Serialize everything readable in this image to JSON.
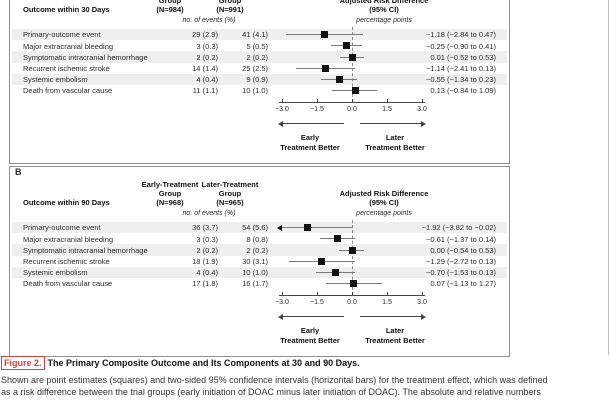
{
  "page": {
    "background": "#ffffff"
  },
  "colors": {
    "row_stripe": "#efefef",
    "panel_border": "#8f8f8f",
    "axis": "#444444",
    "ci_bar": "#7a7a7a",
    "marker": "#111111",
    "zero_line": "#8a8a8a",
    "caption_red": "#d9413d",
    "text": "#2a2a2a",
    "page_rule": "#bdbdbd"
  },
  "figure_caption": {
    "label": "Figure 2.",
    "title": "The Primary Composite Outcome and Its Components at 30 and 90 Days.",
    "body_lines": [
      "Shown are point estimates (squares) and two-sided 95% confidence intervals (horizontal bars) for the treatment effect, which was defined",
      "as a risk difference between the trial groups (early initiation of DOAC minus later initiation of DOAC). The absolute and relative numbers"
    ]
  },
  "chart_data": [
    {
      "type": "scatter",
      "subtype": "forest-plot",
      "panel_label": "",
      "outcome_header": "Outcome within 30 Days",
      "group_headers": {
        "early": [
          "Group",
          "(N=984)"
        ],
        "later": [
          "Group",
          "(N=991)"
        ]
      },
      "events_unit_label": "no. of events (%)",
      "effect_header_lines": [
        "Adjusted Risk Difference",
        "(95% CI)"
      ],
      "effect_unit_label": "percentage points",
      "xlim": [
        -3,
        3
      ],
      "x_ticks": [
        -3,
        -1.5,
        0,
        1.5,
        3
      ],
      "x_tick_labels": [
        "−3.0",
        "−1.5",
        "0.0",
        "1.5",
        "3.0"
      ],
      "zero_line_x": 0,
      "direction_labels": {
        "left": [
          "Early",
          "Treatment Better"
        ],
        "right": [
          "Later",
          "Treatment Better"
        ]
      },
      "rows": [
        {
          "outcome": "Primary-outcome event",
          "early_events": "29 (2.9)",
          "later_events": "41 (4.1)",
          "estimate": -1.18,
          "ci_low": -2.84,
          "ci_high": 0.47,
          "display": "−1.18 (−2.84 to 0.47)"
        },
        {
          "outcome": "Major extracranial bleeding",
          "early_events": "3 (0.3)",
          "later_events": "5 (0.5)",
          "estimate": -0.25,
          "ci_low": -0.9,
          "ci_high": 0.41,
          "display": "−0.25 (−0.90 to 0.41)"
        },
        {
          "outcome": "Symptomatic intracranial hemorrhage",
          "early_events": "2 (0.2)",
          "later_events": "2 (0.2)",
          "estimate": 0.01,
          "ci_low": -0.52,
          "ci_high": 0.53,
          "display": "0.01 (−0.52 to 0.53)"
        },
        {
          "outcome": "Recurrent ischemic stroke",
          "early_events": "14 (1.4)",
          "later_events": "25 (2.5)",
          "estimate": -1.14,
          "ci_low": -2.41,
          "ci_high": 0.13,
          "display": "−1.14 (−2.41 to 0.13)"
        },
        {
          "outcome": "Systemic embolism",
          "early_events": "4 (0.4)",
          "later_events": "9 (0.9)",
          "estimate": -0.55,
          "ci_low": -1.34,
          "ci_high": 0.23,
          "display": "−0.55 (−1.34 to 0.23)"
        },
        {
          "outcome": "Death from vascular cause",
          "early_events": "11 (1.1)",
          "later_events": "10 (1.0)",
          "estimate": 0.13,
          "ci_low": -0.84,
          "ci_high": 1.09,
          "display": "0.13 (−0.84 to 1.09)"
        }
      ]
    },
    {
      "type": "scatter",
      "subtype": "forest-plot",
      "panel_label": "B",
      "outcome_header": "Outcome within 90 Days",
      "group_headers": {
        "early": [
          "Early-Treatment",
          "Group",
          "(N=968)"
        ],
        "later": [
          "Later-Treatment",
          "Group",
          "(N=965)"
        ]
      },
      "events_unit_label": "no. of events (%)",
      "effect_header_lines": [
        "Adjusted Risk Difference",
        "(95% CI)"
      ],
      "effect_unit_label": "percentage points",
      "xlim": [
        -3,
        3
      ],
      "x_ticks": [
        -3,
        -1.5,
        0,
        1.5,
        3
      ],
      "x_tick_labels": [
        "−3.0",
        "−1.5",
        "0.0",
        "1.5",
        "3.0"
      ],
      "zero_line_x": 0,
      "direction_labels": {
        "left": [
          "Early",
          "Treatment Better"
        ],
        "right": [
          "Later",
          "Treatment Better"
        ]
      },
      "rows": [
        {
          "outcome": "Primary-outcome event",
          "early_events": "36 (3.7)",
          "later_events": "54 (5.6)",
          "estimate": -1.92,
          "ci_low": -3.82,
          "ci_high": -0.02,
          "display": "−1.92 (−3.82 to −0.02)"
        },
        {
          "outcome": "Major extracranial bleeding",
          "early_events": "3 (0.3)",
          "later_events": "8 (0.8)",
          "estimate": -0.61,
          "ci_low": -1.37,
          "ci_high": 0.14,
          "display": "−0.61 (−1.37 to 0.14)"
        },
        {
          "outcome": "Symptomatic intracranial hemorrhage",
          "early_events": "2 (0.2)",
          "later_events": "2 (0.2)",
          "estimate": 0.0,
          "ci_low": -0.54,
          "ci_high": 0.53,
          "display": "0.00 (−0.54 to 0.53)"
        },
        {
          "outcome": "Recurrent ischemic stroke",
          "early_events": "18 (1.9)",
          "later_events": "30 (3.1)",
          "estimate": -1.29,
          "ci_low": -2.72,
          "ci_high": 0.13,
          "display": "−1.29 (−2.72 to 0.13)"
        },
        {
          "outcome": "Systemic embolism",
          "early_events": "4 (0.4)",
          "later_events": "10 (1.0)",
          "estimate": -0.7,
          "ci_low": -1.53,
          "ci_high": 0.13,
          "display": "−0.70 (−1.53 to 0.13)"
        },
        {
          "outcome": "Death from vascular cause",
          "early_events": "17 (1.8)",
          "later_events": "16 (1.7)",
          "estimate": 0.07,
          "ci_low": -1.13,
          "ci_high": 1.27,
          "display": "0.07 (−1.13 to 1.27)"
        }
      ]
    }
  ]
}
